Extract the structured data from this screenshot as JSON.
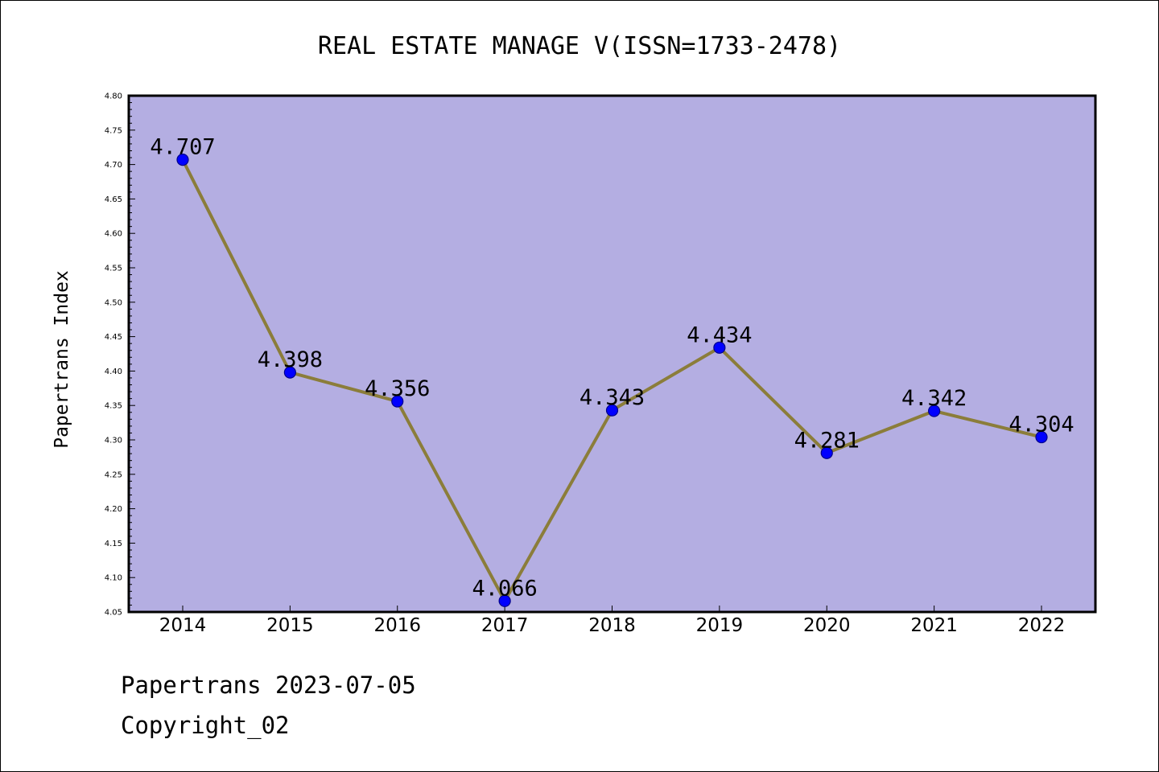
{
  "chart_data": {
    "type": "line",
    "title": "REAL ESTATE MANAGE V(ISSN=1733-2478)",
    "xlabel": "",
    "ylabel": "Papertrans Index",
    "categories": [
      "2014",
      "2015",
      "2016",
      "2017",
      "2018",
      "2019",
      "2020",
      "2021",
      "2022"
    ],
    "series": [
      {
        "values": [
          4.707,
          4.398,
          4.356,
          4.066,
          4.343,
          4.434,
          4.281,
          4.342,
          4.304
        ]
      }
    ],
    "data_labels": [
      "4.707",
      "4.398",
      "4.356",
      "4.066",
      "4.343",
      "4.434",
      "4.281",
      "4.342",
      "4.304"
    ],
    "ylim": [
      4.05,
      4.8
    ],
    "yticks": [
      "4.05",
      "4.10",
      "4.15",
      "4.20",
      "4.25",
      "4.30",
      "4.35",
      "4.40",
      "4.45",
      "4.50",
      "4.55",
      "4.60",
      "4.65",
      "4.70",
      "4.75",
      "4.80"
    ],
    "grid": false,
    "legend": "none",
    "colors": {
      "plot_background": "#b4aee2",
      "line": "#8b7d3a",
      "marker": "#0000ff",
      "marker_edge": "#00008b",
      "axes": "#000000"
    }
  },
  "footer": {
    "line1": "Papertrans 2023-07-05",
    "line2": "Copyright_02"
  }
}
